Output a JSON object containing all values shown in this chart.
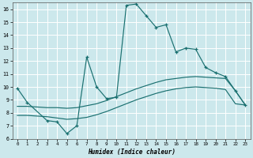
{
  "xlabel": "Humidex (Indice chaleur)",
  "bg_color": "#cce8ec",
  "grid_color": "#ffffff",
  "line_color": "#1a7070",
  "xlim": [
    -0.5,
    23.5
  ],
  "ylim": [
    6,
    16.5
  ],
  "xticks": [
    0,
    1,
    2,
    3,
    4,
    5,
    6,
    7,
    8,
    9,
    10,
    11,
    12,
    13,
    14,
    15,
    16,
    17,
    18,
    19,
    20,
    21,
    22,
    23
  ],
  "yticks": [
    6,
    7,
    8,
    9,
    10,
    11,
    12,
    13,
    14,
    15,
    16
  ],
  "line1_x": [
    0,
    1,
    3,
    4,
    5,
    6,
    7,
    8,
    9,
    10,
    11,
    12,
    13,
    14,
    15,
    16,
    17,
    18,
    19,
    20,
    21,
    22,
    23
  ],
  "line1_y": [
    9.9,
    8.8,
    7.4,
    7.3,
    6.4,
    7.0,
    12.3,
    10.0,
    9.1,
    9.2,
    16.3,
    16.4,
    15.5,
    14.6,
    14.8,
    12.7,
    13.0,
    12.9,
    11.5,
    11.1,
    10.8,
    9.7,
    8.6
  ],
  "line2_x": [
    0,
    1,
    2,
    3,
    4,
    5,
    6,
    7,
    8,
    9,
    10,
    11,
    12,
    13,
    14,
    15,
    16,
    17,
    18,
    19,
    20,
    21,
    22,
    23
  ],
  "line2_y": [
    8.5,
    8.5,
    8.45,
    8.4,
    8.4,
    8.35,
    8.4,
    8.55,
    8.7,
    8.95,
    9.25,
    9.55,
    9.85,
    10.1,
    10.35,
    10.55,
    10.65,
    10.75,
    10.8,
    10.75,
    10.7,
    10.65,
    9.7,
    8.6
  ],
  "line3_x": [
    0,
    1,
    2,
    3,
    4,
    5,
    6,
    7,
    8,
    9,
    10,
    11,
    12,
    13,
    14,
    15,
    16,
    17,
    18,
    19,
    20,
    21,
    22,
    23
  ],
  "line3_y": [
    7.8,
    7.8,
    7.75,
    7.7,
    7.6,
    7.5,
    7.55,
    7.65,
    7.85,
    8.1,
    8.4,
    8.7,
    9.0,
    9.25,
    9.5,
    9.7,
    9.85,
    9.95,
    10.0,
    9.95,
    9.9,
    9.8,
    8.7,
    8.6
  ]
}
